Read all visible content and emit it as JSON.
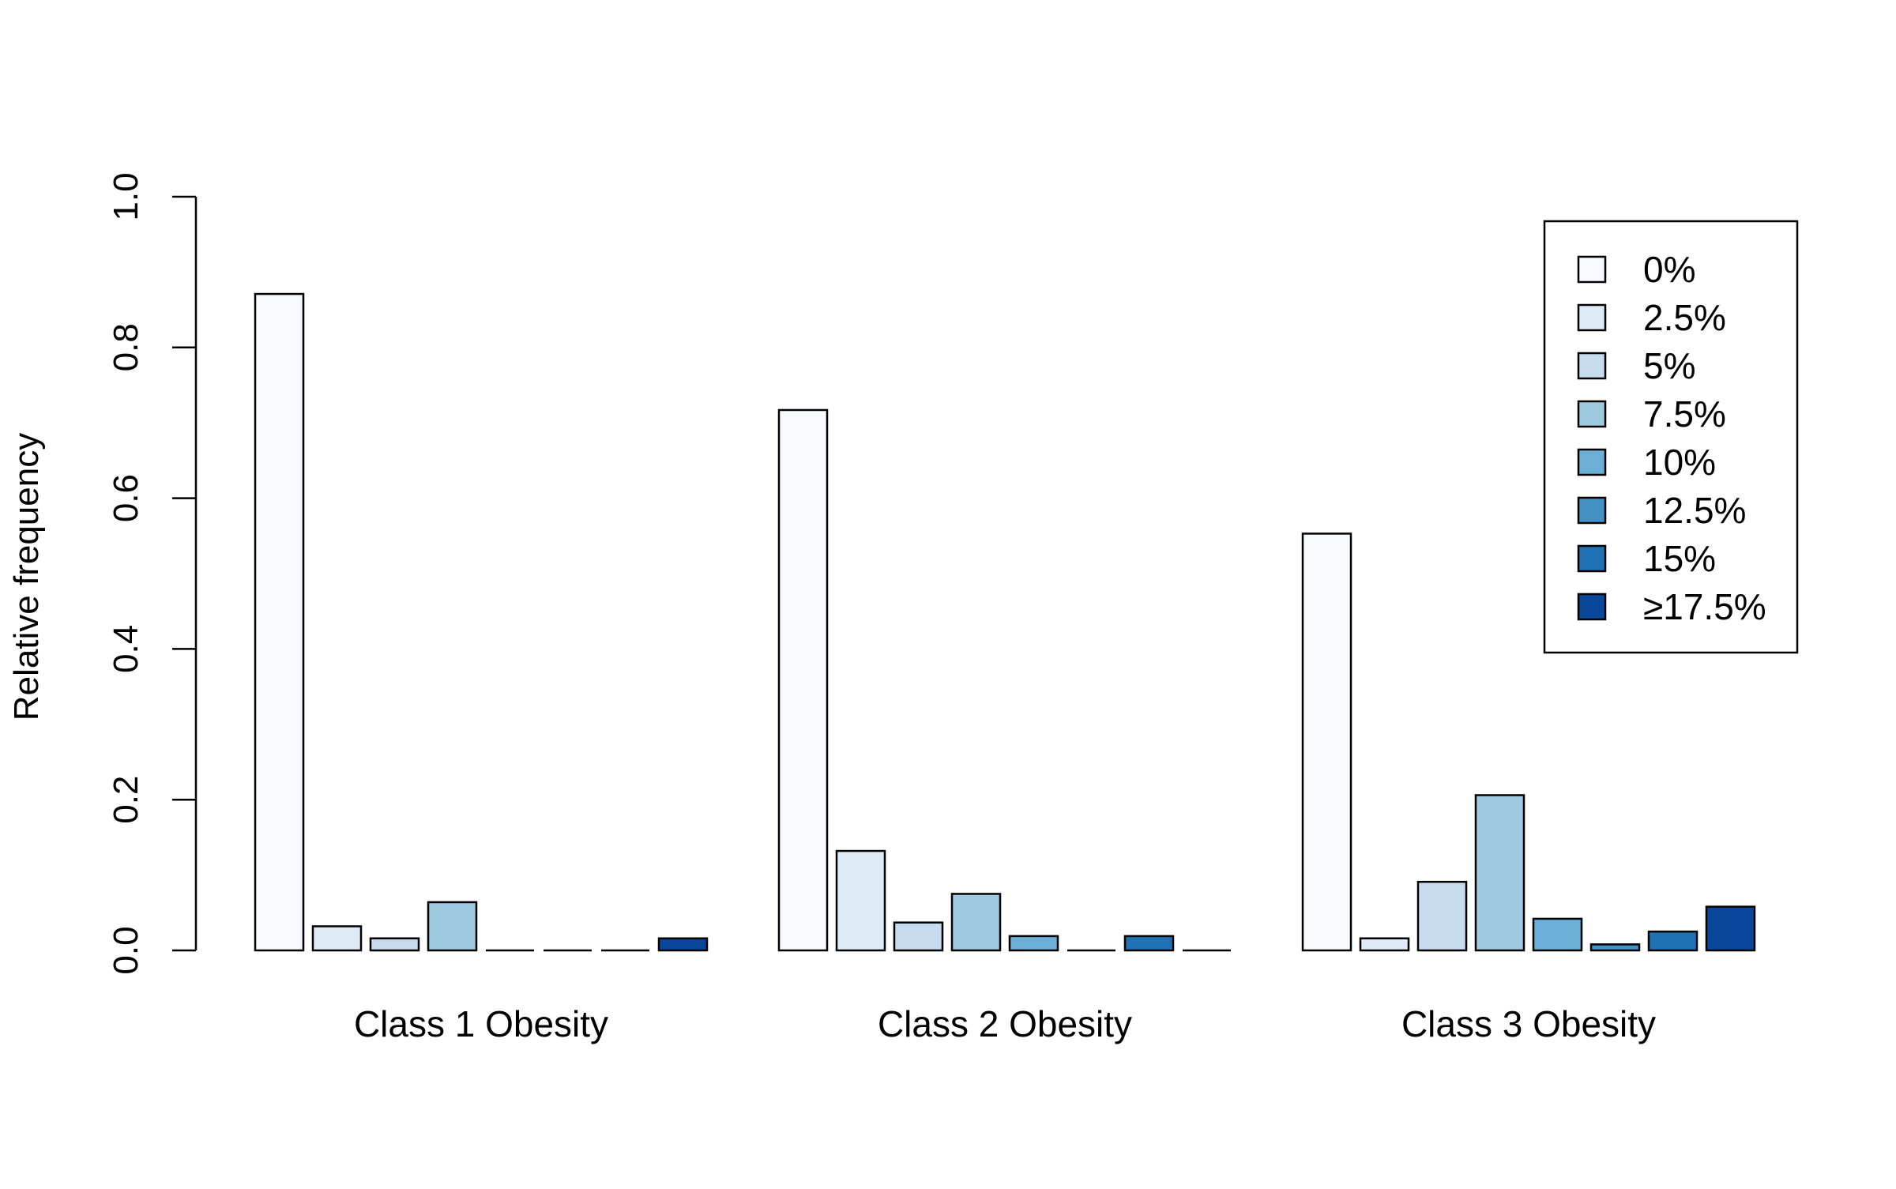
{
  "chart_data": {
    "type": "bar",
    "title": "",
    "xlabel": "",
    "ylabel": "Relative frequency",
    "ylim": [
      0,
      1
    ],
    "yticks": [
      "0.0",
      "0.2",
      "0.4",
      "0.6",
      "0.8",
      "1.0"
    ],
    "grid": false,
    "legend_position": "top-right",
    "categories": [
      "Class 1 Obesity",
      "Class 2 Obesity",
      "Class 3 Obesity"
    ],
    "series": [
      {
        "name": "0%",
        "color": "#F7FBFF",
        "values": [
          0.871,
          0.717,
          0.553
        ]
      },
      {
        "name": "2.5%",
        "color": "#DEEBF7",
        "values": [
          0.032,
          0.132,
          0.016
        ]
      },
      {
        "name": "5%",
        "color": "#C6DBEF",
        "values": [
          0.016,
          0.037,
          0.091
        ]
      },
      {
        "name": "7.5%",
        "color": "#9ECAE1",
        "values": [
          0.064,
          0.075,
          0.206
        ]
      },
      {
        "name": "10%",
        "color": "#6BAED6",
        "values": [
          0.0,
          0.019,
          0.042
        ]
      },
      {
        "name": "12.5%",
        "color": "#4292C6",
        "values": [
          0.0,
          0.0,
          0.008
        ]
      },
      {
        "name": "15%",
        "color": "#2171B5",
        "values": [
          0.0,
          0.019,
          0.025
        ]
      },
      {
        "name": "≥17.5%",
        "color": "#08479A",
        "values": [
          0.016,
          0.0,
          0.058
        ]
      }
    ]
  }
}
